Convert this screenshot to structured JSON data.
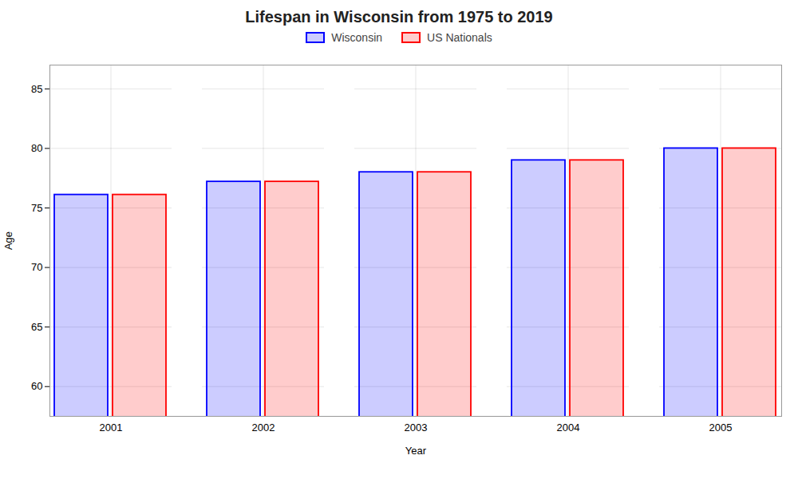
{
  "chart_data": {
    "type": "bar",
    "title": "Lifespan in Wisconsin from 1975 to 2019",
    "xlabel": "Year",
    "ylabel": "Age",
    "categories": [
      2001,
      2002,
      2003,
      2004,
      2005
    ],
    "series": [
      {
        "name": "Wisconsin",
        "color": "#0000ff",
        "values": [
          76.1,
          77.2,
          78.0,
          79.0,
          80.0
        ]
      },
      {
        "name": "US Nationals",
        "color": "#ff0000",
        "values": [
          76.1,
          77.2,
          78.0,
          79.0,
          80.0
        ]
      }
    ],
    "ylim": [
      57.5,
      87
    ],
    "yticks": [
      60,
      65,
      70,
      75,
      80,
      85
    ],
    "grid": true,
    "legend": "top"
  }
}
